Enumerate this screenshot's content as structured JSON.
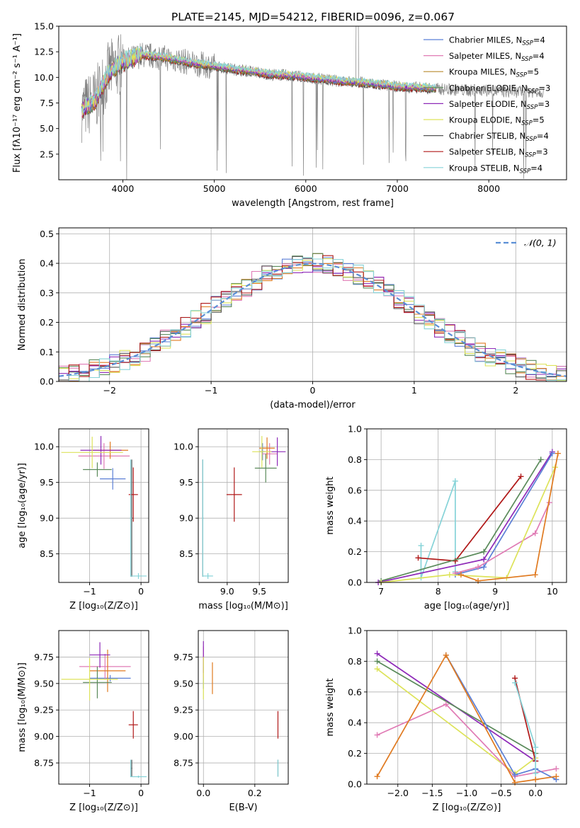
{
  "figure_title": "PLATE=2145, MJD=54212, FIBERID=0096, z=0.067",
  "colors": {
    "Chabrier MILES": "#5b7fd6",
    "Salpeter MILES": "#e07bb5",
    "Kroupa MILES": "#b88a2e",
    "Chabrier ELODIE": "#5a8a5a",
    "Salpeter ELODIE": "#8e2ab8",
    "Kroupa ELODIE": "#dde35a",
    "Chabrier STELIB": "#555555",
    "Salpeter STELIB": "#b01818",
    "Kroupa STELIB": "#86d3d8",
    "orange": "#e07a20",
    "data": "#808080",
    "normal": "#5b8fd6"
  },
  "chart_data": [
    {
      "id": "spectrum",
      "type": "line",
      "xlabel": "wavelength [Angstrom, rest frame]",
      "ylabel": "Flux [fλ10⁻¹⁷ erg cm⁻² s⁻¹ A⁻¹]",
      "xlim": [
        3300,
        8850
      ],
      "ylim": [
        0.0,
        15.0
      ],
      "xticks": [
        "4000",
        "5000",
        "6000",
        "7000",
        "8000"
      ],
      "yticks": [
        "2.5",
        "5.0",
        "7.5",
        "10.0",
        "12.5",
        "15.0"
      ],
      "legend": [
        {
          "name": "Chabrier MILES",
          "nssp": "4"
        },
        {
          "name": "Salpeter MILES",
          "nssp": "4"
        },
        {
          "name": "Kroupa MILES",
          "nssp": "5"
        },
        {
          "name": "Chabrier ELODIE",
          "nssp": "3"
        },
        {
          "name": "Salpeter ELODIE",
          "nssp": "3"
        },
        {
          "name": "Kroupa ELODIE",
          "nssp": "5"
        },
        {
          "name": "Chabrier STELIB",
          "nssp": "4"
        },
        {
          "name": "Salpeter STELIB",
          "nssp": "3"
        },
        {
          "name": "Kroupa STELIB",
          "nssp": "4"
        }
      ],
      "legend_placement": "upper-right",
      "continuum_x": [
        3550,
        3700,
        3850,
        4000,
        4200,
        4400,
        4600,
        4800,
        5000,
        5200,
        5400,
        5600,
        5800,
        6000,
        6200,
        6400,
        6600,
        6800,
        7000,
        7200,
        7400,
        7600,
        7800,
        8000,
        8200,
        8400,
        8600
      ],
      "continuum_y": [
        6.8,
        7.8,
        10.5,
        11.5,
        12.2,
        12.0,
        11.7,
        11.3,
        11.1,
        10.8,
        10.6,
        10.3,
        10.2,
        10.0,
        9.8,
        9.6,
        9.5,
        9.3,
        9.1,
        9.0,
        8.9,
        8.8,
        8.7,
        8.7,
        8.6,
        8.6,
        8.6
      ],
      "model_range": [
        3550,
        7420
      ]
    },
    {
      "id": "residuals",
      "type": "histogram",
      "xlabel": "(data-model)/error",
      "ylabel": "Normed distribution",
      "xlim": [
        -2.5,
        2.5
      ],
      "ylim": [
        0.0,
        0.52
      ],
      "xticks": [
        "−2",
        "−1",
        "0",
        "1",
        "2"
      ],
      "yticks": [
        "0.0",
        "0.1",
        "0.2",
        "0.3",
        "0.4",
        "0.5"
      ],
      "legend_label": "𝒩(0, 1)",
      "bin_width": 0.1,
      "grid": true
    },
    {
      "id": "age_vs_z",
      "type": "errorbar",
      "xlabel": "Z [log₁₀(Z/Z⊙)]",
      "ylabel": "age  [log₁₀(age/yr)]",
      "xlim": [
        -1.6,
        0.15
      ],
      "ylim": [
        8.1,
        10.25
      ],
      "xticks": [
        "−1",
        "0"
      ],
      "yticks": [
        "8.5",
        "9.0",
        "9.5",
        "10.0"
      ],
      "points": [
        {
          "s": "Chabrier MILES",
          "x": -0.55,
          "y": 9.55,
          "xe": 0.25,
          "ye": 0.15
        },
        {
          "s": "Salpeter MILES",
          "x": -0.72,
          "y": 9.87,
          "xe": 0.5,
          "ye": 0.18
        },
        {
          "s": "orange",
          "x": -0.6,
          "y": 9.95,
          "xe": 0.35,
          "ye": 0.12
        },
        {
          "s": "Chabrier ELODIE",
          "x": -0.85,
          "y": 9.68,
          "xe": 0.28,
          "ye": 0.1
        },
        {
          "s": "Salpeter ELODIE",
          "x": -0.78,
          "y": 9.95,
          "xe": 0.4,
          "ye": 0.2
        },
        {
          "s": "Kroupa ELODIE",
          "x": -0.95,
          "y": 9.92,
          "xe": 0.6,
          "ye": 0.22
        },
        {
          "s": "Chabrier STELIB",
          "x": -0.18,
          "y": 9.0,
          "xe": 0.02,
          "ye": 0.82
        },
        {
          "s": "Salpeter STELIB",
          "x": -0.15,
          "y": 9.33,
          "xe": 0.09,
          "ye": 0.38
        },
        {
          "s": "Kroupa STELIB",
          "x": -0.05,
          "y": 8.19,
          "xe": 0.16,
          "ye": 0.04
        },
        {
          "s": "Kroupa STELIB",
          "x": -0.2,
          "y": 9.0,
          "xe": 0.02,
          "ye": 0.82
        }
      ]
    },
    {
      "id": "age_vs_mass",
      "type": "errorbar",
      "xlabel": "mass [log₁₀(M/M⊙)]",
      "ylabel": "",
      "xlim": [
        8.55,
        9.95
      ],
      "ylim": [
        8.1,
        10.25
      ],
      "xticks": [
        "9.0",
        "9.5"
      ],
      "yticks": [
        "8.5",
        "9.0",
        "9.5",
        "10.0"
      ],
      "points": [
        {
          "s": "Chabrier MILES",
          "x": 9.55,
          "y": 9.93,
          "xe": 0.05,
          "ye": 0.12
        },
        {
          "s": "Salpeter MILES",
          "x": 9.66,
          "y": 9.9,
          "xe": 0.12,
          "ye": 0.15
        },
        {
          "s": "orange",
          "x": 9.62,
          "y": 9.98,
          "xe": 0.12,
          "ye": 0.15
        },
        {
          "s": "Chabrier ELODIE",
          "x": 9.6,
          "y": 9.7,
          "xe": 0.17,
          "ye": 0.2
        },
        {
          "s": "Salpeter ELODIE",
          "x": 9.78,
          "y": 9.93,
          "xe": 0.13,
          "ye": 0.2
        },
        {
          "s": "Kroupa ELODIE",
          "x": 9.54,
          "y": 9.93,
          "xe": 0.15,
          "ye": 0.22
        },
        {
          "s": "Chabrier STELIB",
          "x": 8.62,
          "y": 9.0,
          "xe": 0.01,
          "ye": 0.82
        },
        {
          "s": "Salpeter STELIB",
          "x": 9.11,
          "y": 9.33,
          "xe": 0.12,
          "ye": 0.38
        },
        {
          "s": "Kroupa STELIB",
          "x": 8.7,
          "y": 8.19,
          "xe": 0.08,
          "ye": 0.04
        },
        {
          "s": "Kroupa STELIB",
          "x": 8.62,
          "y": 9.0,
          "xe": 0.01,
          "ye": 0.82
        }
      ]
    },
    {
      "id": "massweight_vs_age",
      "type": "line",
      "xlabel": "age  [log₁₀(age/yr)]",
      "ylabel": "mass weight",
      "xlim": [
        6.75,
        10.25
      ],
      "ylim": [
        0.0,
        1.0
      ],
      "xticks": [
        "7",
        "8",
        "9",
        "10"
      ],
      "yticks": [
        "0.0",
        "0.2",
        "0.4",
        "0.6",
        "0.8",
        "1.0"
      ],
      "series": [
        {
          "s": "Kroupa STELIB",
          "x": [
            7.7,
            7.7,
            8.3,
            8.3,
            8.3
          ],
          "y": [
            0.24,
            0.03,
            0.66,
            0.07,
            0.05
          ]
        },
        {
          "s": "Salpeter STELIB",
          "x": [
            7.65,
            8.3,
            9.45
          ],
          "y": [
            0.16,
            0.14,
            0.69
          ]
        },
        {
          "s": "Chabrier ELODIE",
          "x": [
            7.0,
            8.8,
            9.8
          ],
          "y": [
            0.01,
            0.2,
            0.8
          ]
        },
        {
          "s": "Salpeter ELODIE",
          "x": [
            6.95,
            8.8,
            10.0
          ],
          "y": [
            0.0,
            0.15,
            0.85
          ]
        },
        {
          "s": "Chabrier MILES",
          "x": [
            8.3,
            8.8,
            10.0
          ],
          "y": [
            0.05,
            0.1,
            0.84
          ]
        },
        {
          "s": "Salpeter MILES",
          "x": [
            8.3,
            8.7,
            9.7,
            9.95
          ],
          "y": [
            0.06,
            0.1,
            0.32,
            0.52
          ]
        },
        {
          "s": "Kroupa ELODIE",
          "x": [
            7.0,
            8.2,
            9.2,
            10.05
          ],
          "y": [
            0.0,
            0.05,
            0.03,
            0.75
          ]
        },
        {
          "s": "orange",
          "x": [
            8.4,
            8.7,
            9.7,
            10.1
          ],
          "y": [
            0.05,
            0.01,
            0.05,
            0.84
          ]
        }
      ]
    },
    {
      "id": "mass_vs_z",
      "type": "errorbar",
      "xlabel": "Z [log₁₀(Z/Z⊙)]",
      "ylabel": "mass [log₁₀(M/M⊙)]",
      "xlim": [
        -1.6,
        0.15
      ],
      "ylim": [
        8.55,
        10.0
      ],
      "xticks": [
        "−1",
        "0"
      ],
      "yticks": [
        "8.75",
        "9.00",
        "9.25",
        "9.50",
        "9.75"
      ],
      "points": [
        {
          "s": "Chabrier MILES",
          "x": -0.6,
          "y": 9.55,
          "xe": 0.4,
          "ye": 0.03
        },
        {
          "s": "Salpeter MILES",
          "x": -0.7,
          "y": 9.66,
          "xe": 0.5,
          "ye": 0.12
        },
        {
          "s": "orange",
          "x": -0.65,
          "y": 9.62,
          "xe": 0.35,
          "ye": 0.2
        },
        {
          "s": "Chabrier ELODIE",
          "x": -0.85,
          "y": 9.51,
          "xe": 0.28,
          "ye": 0.15
        },
        {
          "s": "Salpeter ELODIE",
          "x": -0.8,
          "y": 9.77,
          "xe": 0.2,
          "ye": 0.12
        },
        {
          "s": "Kroupa ELODIE",
          "x": -1.0,
          "y": 9.54,
          "xe": 0.55,
          "ye": 0.2
        },
        {
          "s": "Chabrier STELIB",
          "x": -0.18,
          "y": 8.7,
          "xe": 0.01,
          "ye": 0.08
        },
        {
          "s": "Salpeter STELIB",
          "x": -0.15,
          "y": 9.11,
          "xe": 0.09,
          "ye": 0.13
        },
        {
          "s": "Kroupa STELIB",
          "x": -0.05,
          "y": 8.62,
          "xe": 0.16,
          "ye": 0.01
        },
        {
          "s": "Kroupa STELIB",
          "x": -0.2,
          "y": 8.7,
          "xe": 0.01,
          "ye": 0.08
        }
      ]
    },
    {
      "id": "mass_vs_ebv",
      "type": "errorbar",
      "xlabel": "E(B-V)",
      "ylabel": "",
      "xlim": [
        -0.02,
        0.33
      ],
      "ylim": [
        8.55,
        10.0
      ],
      "xticks": [
        "0.0",
        "0.2"
      ],
      "yticks": [
        "8.75",
        "9.00",
        "9.25",
        "9.50",
        "9.75"
      ],
      "points": [
        {
          "s": "Chabrier MILES",
          "x": 0.0,
          "y": 9.55,
          "xe": 0.0,
          "ye": 0.1
        },
        {
          "s": "Salpeter MILES",
          "x": 0.0,
          "y": 9.7,
          "xe": 0.0,
          "ye": 0.15
        },
        {
          "s": "Salpeter ELODIE",
          "x": 0.0,
          "y": 9.75,
          "xe": 0.0,
          "ye": 0.15
        },
        {
          "s": "Kroupa ELODIE",
          "x": 0.0,
          "y": 9.55,
          "xe": 0.0,
          "ye": 0.2
        },
        {
          "s": "orange",
          "x": 0.035,
          "y": 9.55,
          "xe": 0.0,
          "ye": 0.15
        },
        {
          "s": "Chabrier STELIB",
          "x": 0.29,
          "y": 8.7,
          "xe": 0.0,
          "ye": 0.08
        },
        {
          "s": "Salpeter STELIB",
          "x": 0.29,
          "y": 9.11,
          "xe": 0.0,
          "ye": 0.13
        },
        {
          "s": "Kroupa STELIB",
          "x": 0.29,
          "y": 8.7,
          "xe": 0.0,
          "ye": 0.08
        }
      ]
    },
    {
      "id": "massweight_vs_z",
      "type": "line",
      "xlabel": "Z [log₁₀(Z/Z⊙)]",
      "ylabel": "mass weight",
      "xlim": [
        -2.45,
        0.45
      ],
      "ylim": [
        0.0,
        1.0
      ],
      "xticks": [
        "−2.0",
        "−1.5",
        "−1.0",
        "−0.5",
        "0.0"
      ],
      "yticks": [
        "0.0",
        "0.2",
        "0.4",
        "0.6",
        "0.8",
        "1.0"
      ],
      "series": [
        {
          "s": "Salpeter ELODIE",
          "x": [
            -2.3,
            0.0
          ],
          "y": [
            0.85,
            0.15
          ]
        },
        {
          "s": "Chabrier ELODIE",
          "x": [
            -2.3,
            0.0
          ],
          "y": [
            0.8,
            0.2
          ]
        },
        {
          "s": "Kroupa ELODIE",
          "x": [
            -2.3,
            -0.3,
            0.0
          ],
          "y": [
            0.75,
            0.07,
            0.17
          ]
        },
        {
          "s": "Salpeter MILES",
          "x": [
            -2.3,
            -1.3,
            -0.3,
            0.3
          ],
          "y": [
            0.32,
            0.52,
            0.05,
            0.1
          ]
        },
        {
          "s": "Chabrier MILES",
          "x": [
            -1.3,
            -0.3,
            0.0,
            0.3
          ],
          "y": [
            0.84,
            0.06,
            0.1,
            0.03
          ]
        },
        {
          "s": "orange",
          "x": [
            -2.3,
            -1.3,
            -0.3,
            0.0,
            0.3
          ],
          "y": [
            0.05,
            0.84,
            0.01,
            0.03,
            0.05
          ]
        },
        {
          "s": "Salpeter STELIB",
          "x": [
            -0.3,
            0.0
          ],
          "y": [
            0.69,
            0.15
          ]
        },
        {
          "s": "Kroupa STELIB",
          "x": [
            -0.3,
            0.0,
            0.0
          ],
          "y": [
            0.66,
            0.24,
            0.07
          ]
        }
      ]
    }
  ]
}
